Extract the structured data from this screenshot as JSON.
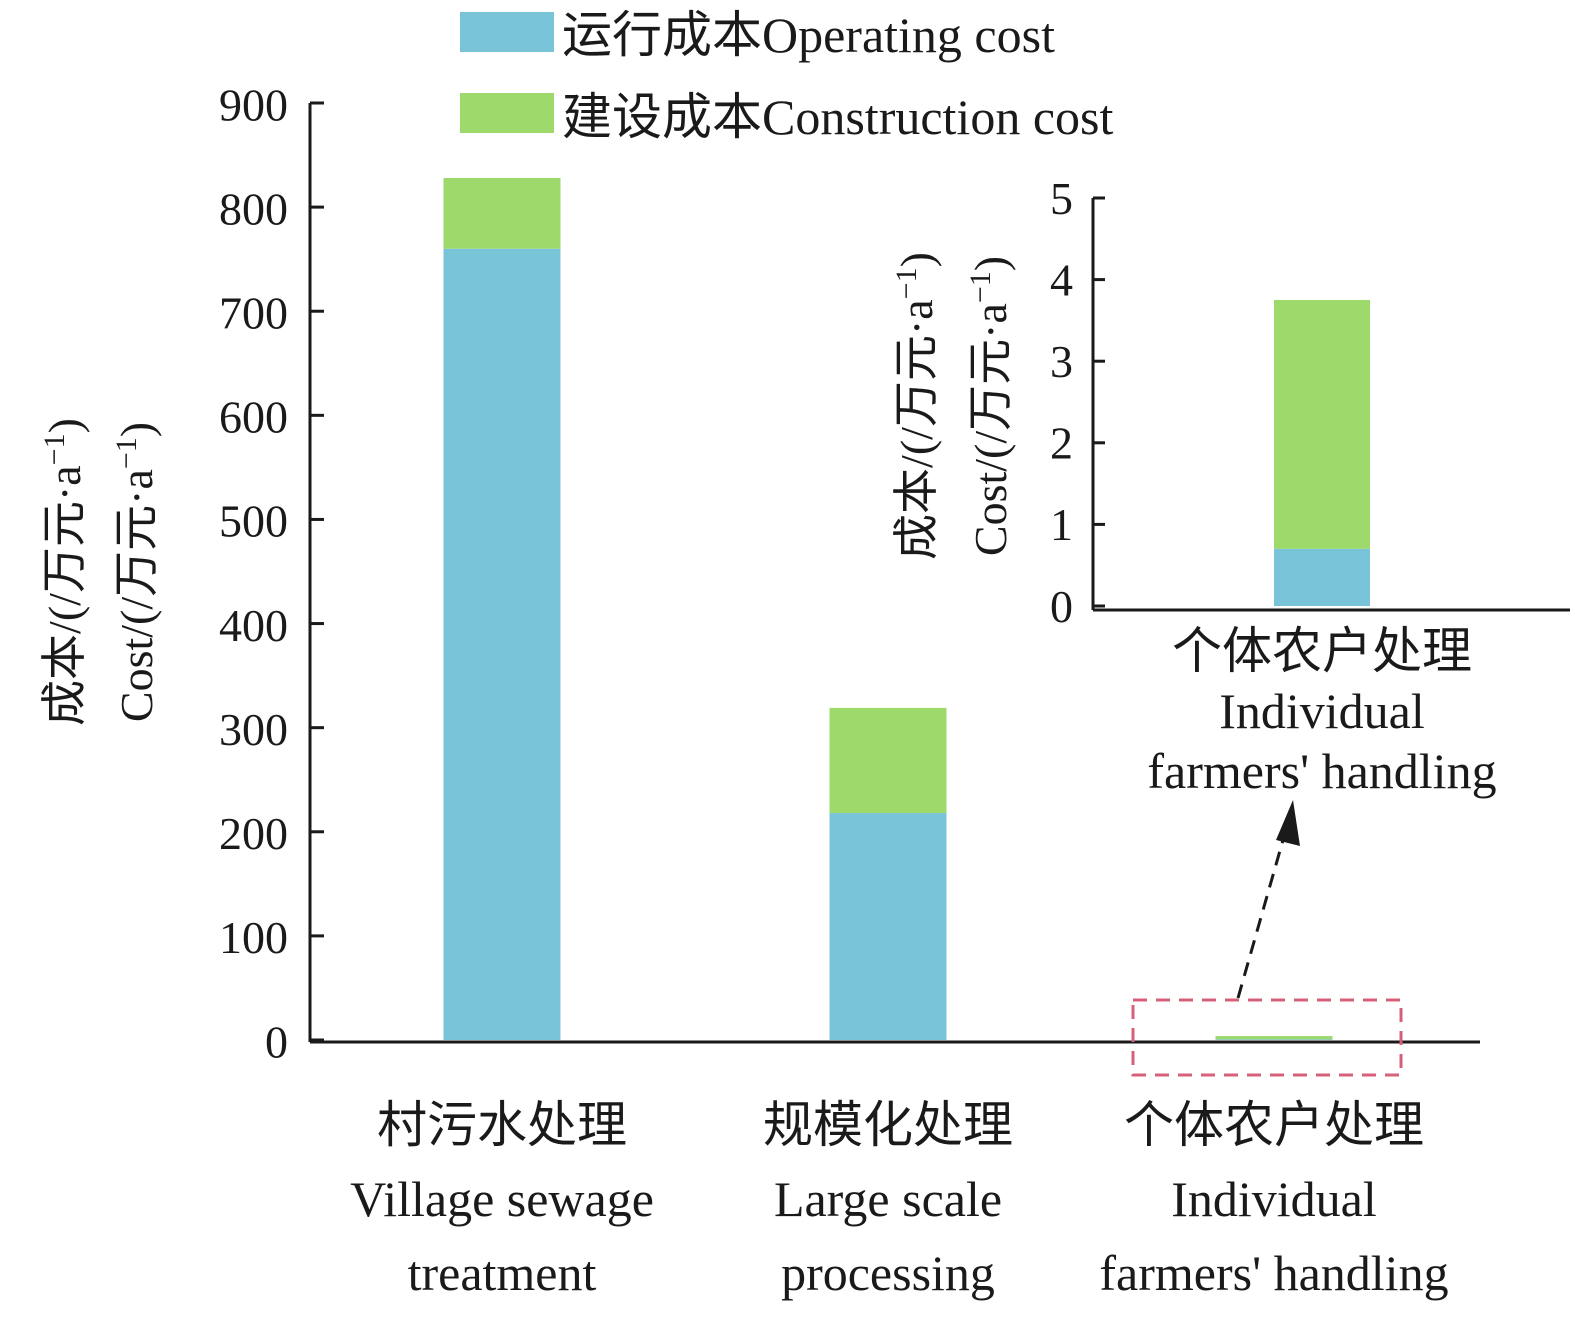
{
  "colors": {
    "operating": "#7ac4da",
    "construction": "#9dd96b",
    "highlight_box": "#d6607a",
    "axis": "#1a1a1a"
  },
  "legend": {
    "operating": "运行成本Operating cost",
    "construction": "建设成本Construction cost"
  },
  "chart_data": [
    {
      "type": "bar",
      "stacked": true,
      "categories": [
        [
          "村污水处理",
          "Village sewage",
          "treatment"
        ],
        [
          "规模化处理",
          "Large scale",
          "processing"
        ],
        [
          "个体农户处理",
          "Individual",
          "farmers' handling"
        ]
      ],
      "series": [
        {
          "name": "运行成本Operating cost",
          "values": [
            760,
            218,
            0.7
          ]
        },
        {
          "name": "建设成本Construction cost",
          "values": [
            68,
            101,
            3.05
          ]
        }
      ],
      "ylabel": [
        "成本/(/万元·a",
        "Cost/(/万元·a"
      ],
      "ylabel_sup": "−1",
      "ylabel_close": ")",
      "ylim": [
        0,
        900
      ],
      "yticks": [
        0,
        100,
        200,
        300,
        400,
        500,
        600,
        700,
        800,
        900
      ],
      "grid": false,
      "legend_position": "top-center"
    },
    {
      "type": "bar",
      "stacked": true,
      "inset": true,
      "categories": [
        [
          "个体农户处理",
          "Individual",
          "farmers' handling"
        ]
      ],
      "series": [
        {
          "name": "运行成本Operating cost",
          "values": [
            0.7
          ]
        },
        {
          "name": "建设成本Construction cost",
          "values": [
            3.05
          ]
        }
      ],
      "ylabel": [
        "成本/(/万元·a",
        "Cost/(/万元·a"
      ],
      "ylabel_sup": "−1",
      "ylabel_close": ")",
      "ylim": [
        0,
        5
      ],
      "yticks": [
        0,
        1,
        2,
        3,
        4,
        5
      ],
      "grid": false
    }
  ]
}
